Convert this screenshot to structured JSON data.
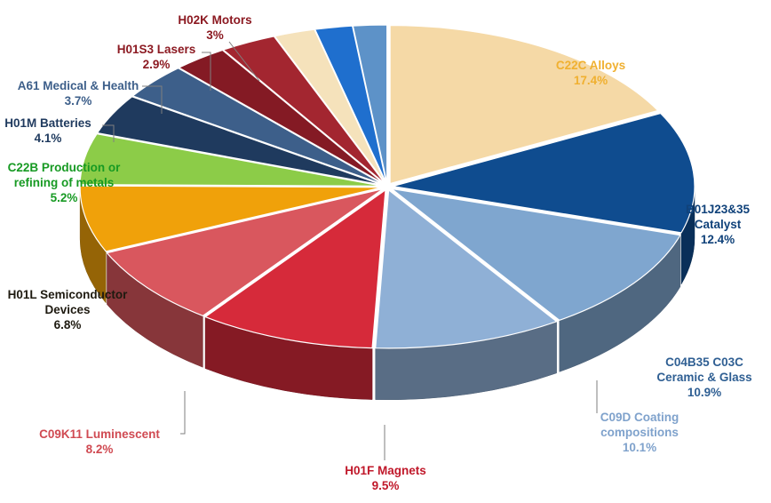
{
  "chart_data": {
    "type": "pie",
    "title": "",
    "style": "3d-exploded-ring",
    "slices": [
      {
        "label": "C22C Alloys",
        "value": 17.4,
        "value_label": "17.4%",
        "color": "#f5d9a6",
        "label_color": "#f0b030"
      },
      {
        "label": "B01J23&35 Catalyst",
        "value": 12.4,
        "value_label": "12.4%",
        "color": "#0f4c8f",
        "label_color": "#10427a"
      },
      {
        "label": "C04B35 C03C Ceramic & Glass",
        "value": 10.9,
        "value_label": "10.9%",
        "color": "#7fa6cf",
        "label_color": "#2f5f93"
      },
      {
        "label": "C09D Coating compositions",
        "value": 10.1,
        "value_label": "10.1%",
        "color": "#8fb0d6",
        "label_color": "#7fa2cc"
      },
      {
        "label": "H01F Magnets",
        "value": 9.5,
        "value_label": "9.5%",
        "color": "#d62a3a",
        "label_color": "#c0182a"
      },
      {
        "label": "C09K11 Luminescent",
        "value": 8.2,
        "value_label": "8.2%",
        "color": "#d9575e",
        "label_color": "#d04a52"
      },
      {
        "label": "H01L Semiconductor Devices",
        "value": 6.8,
        "value_label": "6.8%",
        "color": "#f0a10a",
        "label_color": "#1e1a10"
      },
      {
        "label": "C22B Production or refining of metals",
        "value": 5.2,
        "value_label": "5.2%",
        "color": "#8ccc48",
        "label_color": "#179a23"
      },
      {
        "label": "H01M Batteries",
        "value": 4.1,
        "value_label": "4.1%",
        "color": "#1f3a5e",
        "label_color": "#1f3a5e"
      },
      {
        "label": "A61 Medical & Health",
        "value": 3.7,
        "value_label": "3.7%",
        "color": "#3d5f8a",
        "label_color": "#3d5f8a"
      },
      {
        "label": "H01S3 Lasers",
        "value": 2.9,
        "value_label": "2.9%",
        "color": "#841a24",
        "label_color": "#8c1a22"
      },
      {
        "label": "H02K Motors",
        "value": 3.0,
        "value_label": "3%",
        "color": "#a32630",
        "label_color": "#8c1a22"
      },
      {
        "label": "",
        "value": 2.2,
        "value_label": "",
        "color": "#f5e2bb",
        "label_color": ""
      },
      {
        "label": "",
        "value": 2.0,
        "value_label": "",
        "color": "#1f6fce",
        "label_color": ""
      },
      {
        "label": "",
        "value": 1.8,
        "value_label": "",
        "color": "#5d92c8",
        "label_color": ""
      }
    ]
  }
}
